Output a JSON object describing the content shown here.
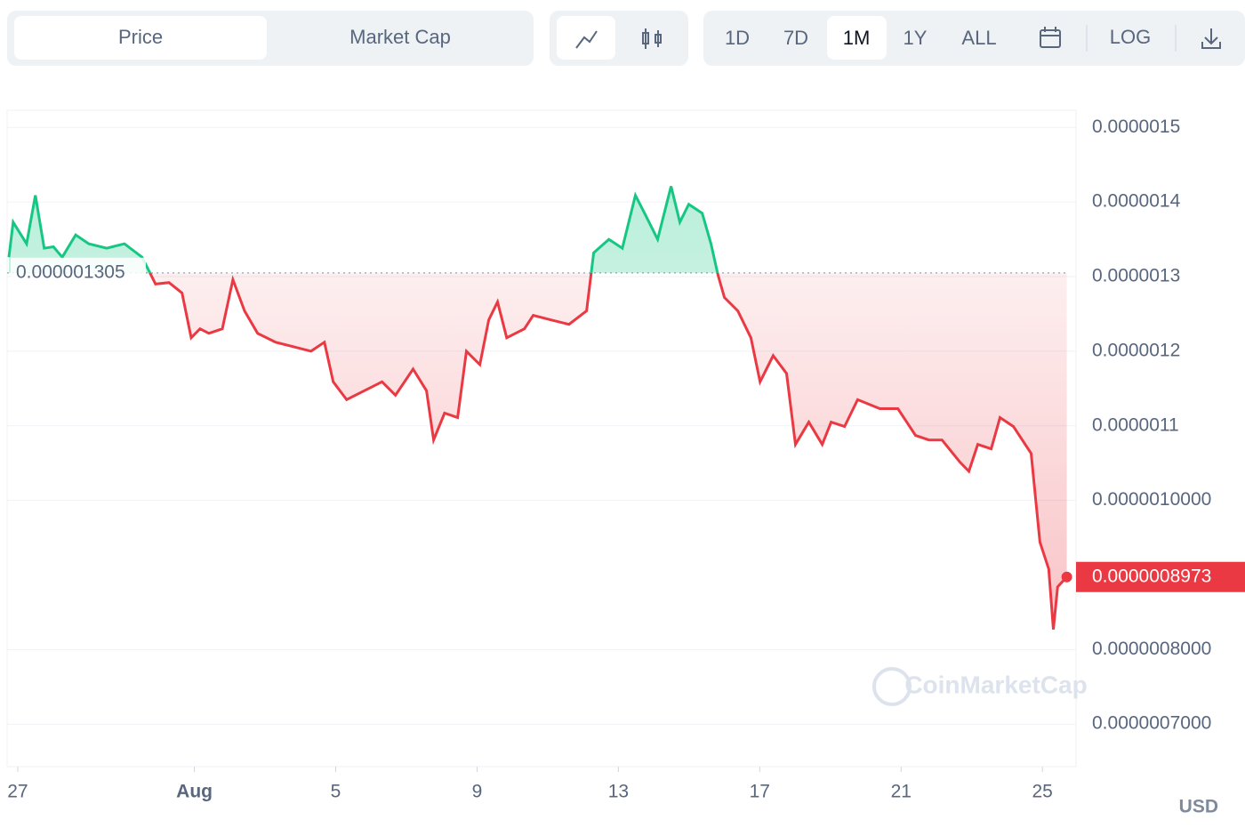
{
  "toolbar": {
    "views": [
      "Price",
      "Market Cap"
    ],
    "active_view": "Price",
    "ranges": [
      "1D",
      "7D",
      "1M",
      "1Y",
      "ALL"
    ],
    "active_range": "1M",
    "log_label": "LOG"
  },
  "chart_data": {
    "type": "line",
    "x": [
      -0.25,
      -0.13,
      0.25,
      0.5,
      0.75,
      1.01,
      1.26,
      1.64,
      2.01,
      2.52,
      3.02,
      3.52,
      3.9,
      4.28,
      4.65,
      4.91,
      5.16,
      5.41,
      5.79,
      6.09,
      6.42,
      6.79,
      7.3,
      7.8,
      8.3,
      8.68,
      8.93,
      9.31,
      9.81,
      10.31,
      10.69,
      11.19,
      11.57,
      11.77,
      12.08,
      12.45,
      12.7,
      13.08,
      13.33,
      13.58,
      13.84,
      14.34,
      14.59,
      15.09,
      15.6,
      16.1,
      16.3,
      16.73,
      17.11,
      17.48,
      17.74,
      18.11,
      18.49,
      18.74,
      18.99,
      19.37,
      19.62,
      19.82,
      20,
      20.38,
      20.75,
      21.01,
      21.38,
      21.76,
      22.01,
      22.39,
      22.77,
      23.02,
      23.4,
      23.77,
      24.4,
      24.91,
      25.41,
      25.79,
      26.16,
      26.67,
      26.92,
      27.17,
      27.55,
      27.8,
      28.18,
      28.68,
      28.93,
      29.18,
      29.31,
      29.43,
      29.69
    ],
    "series": [
      {
        "name": "Price",
        "color_up": "#16c784",
        "color_down": "#ea3943",
        "values": [
          1.326e-06,
          1.373e-06,
          1.344e-06,
          1.409e-06,
          1.338e-06,
          1.34e-06,
          1.326e-06,
          1.356e-06,
          1.344e-06,
          1.338e-06,
          1.344e-06,
          1.326e-06,
          1.29e-06,
          1.292e-06,
          1.278e-06,
          1.218e-06,
          1.23e-06,
          1.224e-06,
          1.23e-06,
          1.296e-06,
          1.254e-06,
          1.224e-06,
          1.212e-06,
          1.206e-06,
          1.2e-06,
          1.212e-06,
          1.159e-06,
          1.135e-06,
          1.147e-06,
          1.159e-06,
          1.141e-06,
          1.176e-06,
          1.147e-06,
          1.081e-06,
          1.117e-06,
          1.111e-06,
          1.2e-06,
          1.182e-06,
          1.242e-06,
          1.266e-06,
          1.218e-06,
          1.23e-06,
          1.248e-06,
          1.242e-06,
          1.236e-06,
          1.254e-06,
          1.332e-06,
          1.35e-06,
          1.338e-06,
          1.409e-06,
          1.385e-06,
          1.35e-06,
          1.421e-06,
          1.373e-06,
          1.397e-06,
          1.385e-06,
          1.344e-06,
          1.302e-06,
          1.272e-06,
          1.254e-06,
          1.218e-06,
          1.159e-06,
          1.194e-06,
          1.17e-06,
          1.075e-06,
          1.105e-06,
          1.075e-06,
          1.105e-06,
          1.099e-06,
          1.135e-06,
          1.123e-06,
          1.123e-06,
          1.087e-06,
          1.081e-06,
          1.081e-06,
          1.051e-06,
          1.039e-06,
          1.075e-06,
          1.069e-06,
          1.111e-06,
          1.099e-06,
          1.063e-06,
          9.44e-07,
          9.08e-07,
          8.27e-07,
          8.84e-07,
          8.973e-07
        ]
      }
    ],
    "baseline": {
      "value": 1.305e-06,
      "label": "0.000001305"
    },
    "current_price": {
      "value": 8.973e-07,
      "label": "0.0000008973"
    },
    "xlim": [
      -0.3,
      29.7
    ],
    "xticks": [
      {
        "value": 0,
        "label": "27"
      },
      {
        "value": 5,
        "label": "Aug"
      },
      {
        "value": 9,
        "label": "5"
      },
      {
        "value": 13,
        "label": "9"
      },
      {
        "value": 17,
        "label": "13"
      },
      {
        "value": 21,
        "label": "17"
      },
      {
        "value": 25,
        "label": "21"
      },
      {
        "value": 29,
        "label": "25"
      }
    ],
    "ylim": [
      6.43e-07,
      1.523e-06
    ],
    "yticks": [
      {
        "value": 1.5e-06,
        "label": "0.0000015"
      },
      {
        "value": 1.4e-06,
        "label": "0.0000014"
      },
      {
        "value": 1.3e-06,
        "label": "0.0000013"
      },
      {
        "value": 1.2e-06,
        "label": "0.0000012"
      },
      {
        "value": 1.1e-06,
        "label": "0.0000011"
      },
      {
        "value": 1e-06,
        "label": "0.0000010000"
      },
      {
        "value": 8e-07,
        "label": "0.0000008000"
      },
      {
        "value": 7e-07,
        "label": "0.0000007000"
      }
    ],
    "grid": true,
    "currency": "USD",
    "watermark": "CoinMarketCap"
  }
}
